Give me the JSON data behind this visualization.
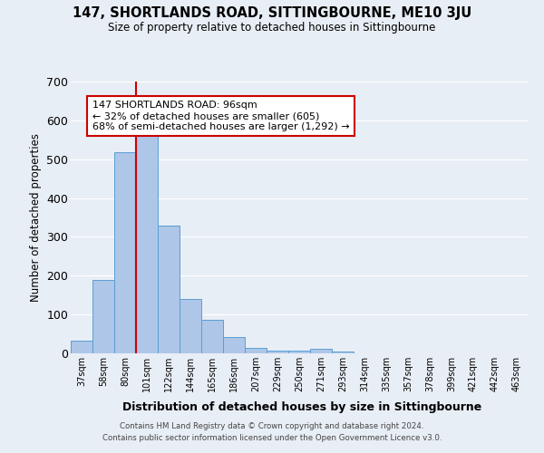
{
  "title": "147, SHORTLANDS ROAD, SITTINGBOURNE, ME10 3JU",
  "subtitle": "Size of property relative to detached houses in Sittingbourne",
  "xlabel": "Distribution of detached houses by size in Sittingbourne",
  "ylabel": "Number of detached properties",
  "bar_labels": [
    "37sqm",
    "58sqm",
    "80sqm",
    "101sqm",
    "122sqm",
    "144sqm",
    "165sqm",
    "186sqm",
    "207sqm",
    "229sqm",
    "250sqm",
    "271sqm",
    "293sqm",
    "314sqm",
    "335sqm",
    "357sqm",
    "378sqm",
    "399sqm",
    "421sqm",
    "442sqm",
    "463sqm"
  ],
  "bar_heights": [
    33,
    190,
    518,
    560,
    328,
    140,
    87,
    42,
    14,
    8,
    8,
    11,
    5,
    0,
    0,
    0,
    0,
    0,
    0,
    0,
    0
  ],
  "bar_color": "#aec6e8",
  "bar_edge_color": "#5a9fd4",
  "ylim": [
    0,
    700
  ],
  "yticks": [
    0,
    100,
    200,
    300,
    400,
    500,
    600,
    700
  ],
  "vline_color": "#cc0000",
  "annotation_title": "147 SHORTLANDS ROAD: 96sqm",
  "annotation_line1": "← 32% of detached houses are smaller (605)",
  "annotation_line2": "68% of semi-detached houses are larger (1,292) →",
  "annotation_box_color": "#ffffff",
  "annotation_box_edge": "#cc0000",
  "bg_color": "#e8eef5",
  "grid_color": "#ffffff",
  "footer_line1": "Contains HM Land Registry data © Crown copyright and database right 2024.",
  "footer_line2": "Contains public sector information licensed under the Open Government Licence v3.0."
}
